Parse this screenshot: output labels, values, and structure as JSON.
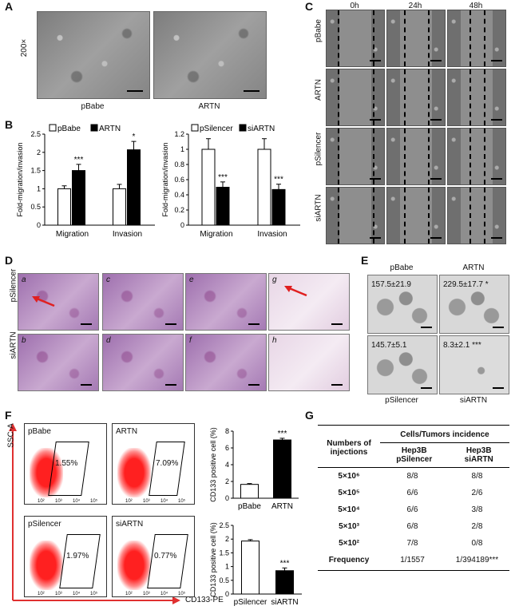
{
  "panels": {
    "A": "A",
    "B": "B",
    "C": "C",
    "D": "D",
    "E": "E",
    "F": "F",
    "G": "G"
  },
  "panelA": {
    "magnification": "200×",
    "images": [
      "pBabe",
      "ARTN"
    ]
  },
  "panelB_left": {
    "legend": [
      "pBabe",
      "ARTN"
    ],
    "ylabel": "Fold-migration/invasion"
  },
  "panelB_right": {
    "legend": [
      "pSilencer",
      "siARTN"
    ],
    "ylabel": "Fold-migration/invasion"
  },
  "panelC": {
    "times": [
      "0h",
      "24h",
      "48h"
    ],
    "rows": [
      "pBabe",
      "ARTN",
      "pSilencer",
      "siARTN"
    ]
  },
  "panelD": {
    "rows": [
      "pSilencer",
      "siARTN"
    ],
    "letters": [
      "a",
      "c",
      "e",
      "g",
      "b",
      "d",
      "f",
      "h"
    ]
  },
  "panelE": {
    "top": [
      "pBabe",
      "ARTN"
    ],
    "bottom": [
      "pSilencer",
      "siARTN"
    ],
    "values": [
      "157.5±21.9",
      "229.5±17.7 *",
      "145.7±5.1",
      "8.3±2.1 ***"
    ]
  },
  "panelF": {
    "yaxis": "SSC-A",
    "xaxis": "CD133-PE",
    "plots": [
      {
        "label": "pBabe",
        "pct": "1.55%"
      },
      {
        "label": "ARTN",
        "pct": "7.09%"
      },
      {
        "label": "pSilencer",
        "pct": "1.97%"
      },
      {
        "label": "siARTN",
        "pct": "0.77%"
      }
    ],
    "ticks": [
      "10²",
      "10³",
      "10⁴",
      "10⁵"
    ]
  },
  "panelG": {
    "col1": "Numbers of injections",
    "groupHeader": "Cells/Tumors incidence",
    "col2": "Hep3B pSilencer",
    "col3": "Hep3B siARTN",
    "rows": [
      [
        "5×10⁶",
        "8/8",
        "8/8"
      ],
      [
        "5×10⁵",
        "6/6",
        "2/6"
      ],
      [
        "5×10⁴",
        "6/6",
        "3/8"
      ],
      [
        "5×10³",
        "6/8",
        "2/8"
      ],
      [
        "5×10²",
        "7/8",
        "0/8"
      ],
      [
        "Frequency",
        "1/1557",
        "1/394189***"
      ]
    ]
  },
  "chart_data": [
    {
      "type": "bar",
      "categories": [
        "Migration",
        "Invasion"
      ],
      "series": [
        {
          "name": "pBabe",
          "values": [
            1.0,
            1.0
          ]
        },
        {
          "name": "ARTN",
          "values": [
            1.5,
            2.07
          ]
        }
      ],
      "errors": [
        [
          0.08,
          0.12
        ],
        [
          0.17,
          0.23
        ]
      ],
      "significance": [
        "***",
        "*"
      ],
      "xlabel": "",
      "ylabel": "Fold-migration/invasion",
      "ylim": [
        0,
        2.5
      ],
      "yticks": [
        "0",
        "0.5",
        "1",
        "1.5",
        "2",
        "2.5"
      ]
    },
    {
      "type": "bar",
      "categories": [
        "Migration",
        "Invasion"
      ],
      "series": [
        {
          "name": "pSilencer",
          "values": [
            1.0,
            1.0
          ]
        },
        {
          "name": "siARTN",
          "values": [
            0.5,
            0.47
          ]
        }
      ],
      "errors": [
        [
          0.14,
          0.14
        ],
        [
          0.07,
          0.07
        ]
      ],
      "significance": [
        "***",
        "***"
      ],
      "xlabel": "",
      "ylabel": "Fold-migration/invasion",
      "ylim": [
        0,
        1.2
      ],
      "yticks": [
        "0",
        "0.2",
        "0.4",
        "0.6",
        "0.8",
        "1",
        "1.2"
      ]
    },
    {
      "type": "bar",
      "categories": [
        "pBabe",
        "ARTN"
      ],
      "values": [
        1.65,
        6.95
      ],
      "errors": [
        0.1,
        0.2
      ],
      "significance": [
        "",
        "***"
      ],
      "ylabel": "CD133 positive cell (%)",
      "ylim": [
        0,
        8
      ],
      "yticks": [
        "0",
        "2",
        "4",
        "6",
        "8"
      ]
    },
    {
      "type": "bar",
      "categories": [
        "pSilencer",
        "siARTN"
      ],
      "values": [
        1.93,
        0.85
      ],
      "errors": [
        0.05,
        0.1
      ],
      "significance": [
        "",
        "***"
      ],
      "ylabel": "CD133 positive cell (%)",
      "ylim": [
        0,
        2.5
      ],
      "yticks": [
        "0",
        "0.5",
        "1",
        "1.5",
        "2",
        "2.5"
      ]
    }
  ]
}
